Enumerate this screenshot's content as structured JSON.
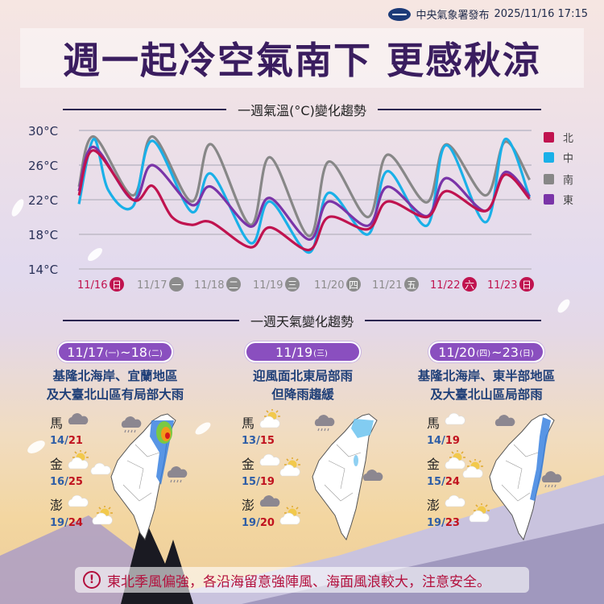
{
  "header": {
    "publisher": "中央氣象署發布",
    "datetime": "2025/11/16 17:15",
    "logo": "cwa-logo"
  },
  "title": "週一起冷空氣南下 更感秋涼",
  "colors": {
    "north": "#c0134f",
    "central": "#1ab0e8",
    "south": "#878787",
    "east": "#7a34a8",
    "weekend": "#c0134f",
    "weekday": "#8c8c8c",
    "pill": "#8a4fbf",
    "title": "#3a1d5f"
  },
  "chart_data": {
    "type": "line",
    "title": "一週氣溫(°C)變化趨勢",
    "ylim": [
      14,
      30
    ],
    "yticks": [
      "30°C",
      "26°C",
      "22°C",
      "18°C",
      "14°C"
    ],
    "yticks_values": [
      30,
      26,
      22,
      18,
      14
    ],
    "grid": true,
    "legend_placement": "right",
    "x_labels": [
      {
        "date": "11/16",
        "weekday": "日",
        "weekend": true
      },
      {
        "date": "11/17",
        "weekday": "一",
        "weekend": false
      },
      {
        "date": "11/18",
        "weekday": "二",
        "weekend": false
      },
      {
        "date": "11/19",
        "weekday": "三",
        "weekend": false
      },
      {
        "date": "11/20",
        "weekday": "四",
        "weekend": false
      },
      {
        "date": "11/21",
        "weekday": "五",
        "weekend": false
      },
      {
        "date": "11/22",
        "weekday": "六",
        "weekend": true
      },
      {
        "date": "11/23",
        "weekday": "日",
        "weekend": true
      }
    ],
    "series": [
      {
        "name": "南",
        "color": "#878787",
        "points": [
          [
            "11/16 08:00",
            23.5
          ],
          [
            "11/16 14:00",
            29.3
          ],
          [
            "11/17 06:00",
            22.5
          ],
          [
            "11/17 14:00",
            29.3
          ],
          [
            "11/18 06:00",
            21.8
          ],
          [
            "11/18 14:00",
            28.4
          ],
          [
            "11/19 06:00",
            19.1
          ],
          [
            "11/19 14:00",
            26.9
          ],
          [
            "11/20 06:00",
            17.8
          ],
          [
            "11/20 14:00",
            26.4
          ],
          [
            "11/21 06:00",
            20.0
          ],
          [
            "11/21 14:00",
            27.2
          ],
          [
            "11/22 06:00",
            21.7
          ],
          [
            "11/22 14:00",
            28.4
          ],
          [
            "11/23 06:00",
            22.5
          ],
          [
            "11/23 14:00",
            28.7
          ],
          [
            "11/24 00:00",
            24.3
          ]
        ]
      },
      {
        "name": "中",
        "color": "#1ab0e8",
        "points": [
          [
            "11/16 08:00",
            21.5
          ],
          [
            "11/16 14:00",
            29.0
          ],
          [
            "11/16 20:00",
            23.1
          ],
          [
            "11/17 06:00",
            21.2
          ],
          [
            "11/17 14:00",
            28.8
          ],
          [
            "11/18 06:00",
            20.6
          ],
          [
            "11/18 14:00",
            25.0
          ],
          [
            "11/19 06:00",
            17.0
          ],
          [
            "11/19 14:00",
            21.8
          ],
          [
            "11/20 06:00",
            15.9
          ],
          [
            "11/20 14:00",
            22.8
          ],
          [
            "11/21 06:00",
            18.0
          ],
          [
            "11/21 14:00",
            25.3
          ],
          [
            "11/22 06:00",
            19.0
          ],
          [
            "11/22 14:00",
            28.3
          ],
          [
            "11/23 06:00",
            19.4
          ],
          [
            "11/23 14:00",
            29.0
          ],
          [
            "11/24 00:00",
            22.3
          ]
        ]
      },
      {
        "name": "東",
        "color": "#7a34a8",
        "points": [
          [
            "11/16 08:00",
            23.0
          ],
          [
            "11/16 14:00",
            28.1
          ],
          [
            "11/17 06:00",
            22.0
          ],
          [
            "11/17 14:00",
            26.0
          ],
          [
            "11/18 06:00",
            21.4
          ],
          [
            "11/18 14:00",
            23.5
          ],
          [
            "11/19 06:00",
            18.9
          ],
          [
            "11/19 14:00",
            22.2
          ],
          [
            "11/20 06:00",
            17.4
          ],
          [
            "11/20 14:00",
            21.8
          ],
          [
            "11/21 06:00",
            19.0
          ],
          [
            "11/21 14:00",
            23.5
          ],
          [
            "11/22 06:00",
            20.1
          ],
          [
            "11/22 14:00",
            24.5
          ],
          [
            "11/23 06:00",
            20.7
          ],
          [
            "11/23 14:00",
            25.2
          ],
          [
            "11/24 00:00",
            22.4
          ]
        ]
      },
      {
        "name": "北",
        "color": "#c0134f",
        "points": [
          [
            "11/16 08:00",
            22.5
          ],
          [
            "11/16 14:00",
            27.7
          ],
          [
            "11/17 06:00",
            22.0
          ],
          [
            "11/17 14:00",
            23.6
          ],
          [
            "11/17 22:00",
            20.0
          ],
          [
            "11/18 06:00",
            19.1
          ],
          [
            "11/18 14:00",
            19.4
          ],
          [
            "11/19 06:00",
            16.5
          ],
          [
            "11/19 14:00",
            18.8
          ],
          [
            "11/20 06:00",
            16.2
          ],
          [
            "11/20 14:00",
            20.0
          ],
          [
            "11/21 06:00",
            18.6
          ],
          [
            "11/21 14:00",
            21.8
          ],
          [
            "11/22 06:00",
            20.0
          ],
          [
            "11/22 14:00",
            23.0
          ],
          [
            "11/23 06:00",
            20.7
          ],
          [
            "11/23 14:00",
            24.9
          ],
          [
            "11/24 00:00",
            22.1
          ]
        ]
      }
    ],
    "legend": [
      "北",
      "中",
      "南",
      "東"
    ]
  },
  "weekly": {
    "title": "一週天氣變化趨勢",
    "panels": [
      {
        "date_main": "11/17",
        "date_wd1": "(一)",
        "date_mid": "~18",
        "date_wd2": "(二)",
        "desc1": "基隆北海岸、宜蘭地區",
        "desc2": "及大臺北山區有局部大雨",
        "islands": [
          {
            "name": "馬",
            "icon": "cloudy-gray",
            "low": "14",
            "high": "21"
          },
          {
            "name": "金",
            "icon": "partly-sunny",
            "low": "16",
            "high": "25"
          },
          {
            "name": "澎",
            "icon": "cloudy-white",
            "low": "19",
            "high": "24"
          }
        ],
        "map_icons": [
          "rain-cloud",
          "cloudy-white",
          "rain-cloud",
          "partly-sunny"
        ],
        "rain": "heavy"
      },
      {
        "date_main": "11/19",
        "date_wd1": "(三)",
        "date_mid": "",
        "date_wd2": "",
        "desc1": "迎風面北東局部雨",
        "desc2": "但降雨趨緩",
        "islands": [
          {
            "name": "馬",
            "icon": "partly-sunny",
            "low": "13",
            "high": "15"
          },
          {
            "name": "金",
            "icon": "cloudy-white",
            "low": "15",
            "high": "19"
          },
          {
            "name": "澎",
            "icon": "cloudy-gray",
            "low": "19",
            "high": "20"
          }
        ],
        "map_icons": [
          "rain-cloud",
          "partly-sunny",
          "cloudy-gray",
          "partly-sunny"
        ],
        "rain": "light"
      },
      {
        "date_main": "11/20",
        "date_wd1": "(四)",
        "date_mid": "~23",
        "date_wd2": "(日)",
        "desc1": "基隆北海岸、東半部地區",
        "desc2": "及大臺北山區局部雨",
        "islands": [
          {
            "name": "馬",
            "icon": "cloudy-white",
            "low": "14",
            "high": "19"
          },
          {
            "name": "金",
            "icon": "partly-sunny",
            "low": "15",
            "high": "24"
          },
          {
            "name": "澎",
            "icon": "cloudy-white",
            "low": "19",
            "high": "23"
          }
        ],
        "map_icons": [
          "cloudy-gray",
          "partly-sunny",
          "rain-cloud",
          "partly-sunny"
        ],
        "rain": "east"
      }
    ]
  },
  "warning": {
    "icon": "exclamation-icon",
    "text": "東北季風偏強，各沿海留意強陣風、海面風浪較大，注意安全。"
  }
}
